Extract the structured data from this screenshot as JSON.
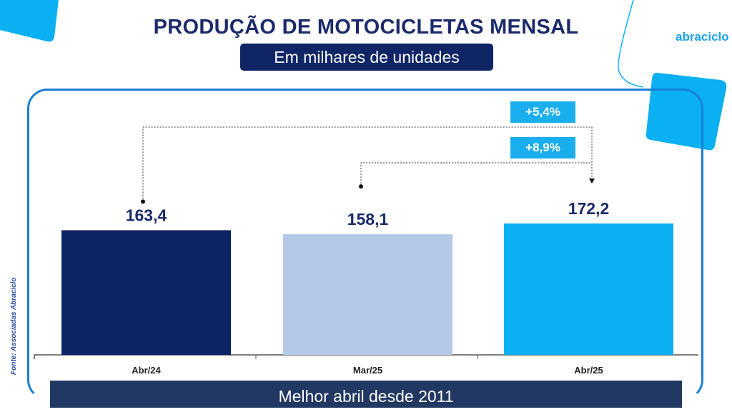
{
  "header": {
    "title": "PRODUÇÃO DE MOTOCICLETAS MENSAL",
    "subtitle": "Em milhares de unidades",
    "logo": "abraciclo"
  },
  "footer": {
    "banner": "Melhor abril desde 2011",
    "source": "Fonte: Associadas Abraciclo"
  },
  "colors": {
    "navy": "#0d2466",
    "light": "#b4c8e8",
    "cyan": "#0bb0f2",
    "accent": "#1aaeee"
  },
  "chart_data": {
    "type": "bar",
    "title": "PRODUÇÃO DE MOTOCICLETAS MENSAL",
    "subtitle": "Em milhares de unidades",
    "categories": [
      "Abr/24",
      "Mar/25",
      "Abr/25"
    ],
    "values": [
      163.4,
      158.1,
      172.2
    ],
    "labels": [
      "163,4",
      "158,1",
      "172,2"
    ],
    "bar_colors": [
      "#0d2466",
      "#b4c8e8",
      "#0bb0f2"
    ],
    "ylim": [
      0,
      172.2
    ],
    "grid": false,
    "annotations": [
      {
        "text": "+5,4%",
        "from": "Abr/24",
        "to": "Abr/25"
      },
      {
        "text": "+8,9%",
        "from": "Mar/25",
        "to": "Abr/25"
      }
    ]
  }
}
